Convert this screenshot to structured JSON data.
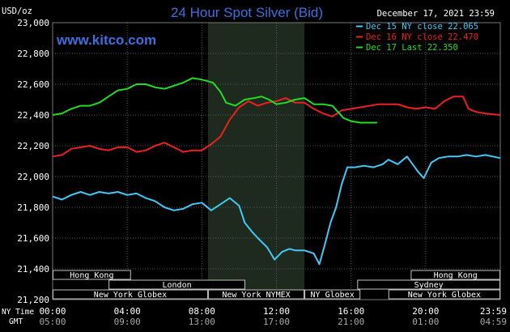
{
  "chart_data": {
    "type": "line",
    "title": "24 Hour Spot Silver (Bid)",
    "date_label": "December 17, 2021 23:59",
    "watermark": "www.kitco.com",
    "ylabel": "USD/oz",
    "ylim": [
      21200,
      23000
    ],
    "y_ticks": [
      21200,
      21400,
      21600,
      21800,
      22000,
      22200,
      22400,
      22600,
      22800,
      23000
    ],
    "y_tick_labels": [
      "21,200",
      "21,400",
      "21,600",
      "21,800",
      "22,000",
      "22,200",
      "22,400",
      "22,600",
      "22,800",
      "23,000"
    ],
    "xlim": [
      0,
      24
    ],
    "x_ticks": [
      0,
      4,
      8,
      12,
      16,
      20,
      24
    ],
    "x_tick_labels_ny": [
      "00:00",
      "04:00",
      "08:00",
      "12:00",
      "16:00",
      "20:00",
      "23:59"
    ],
    "x_tick_labels_gmt": [
      "05:00",
      "09:00",
      "13:00",
      "17:00",
      "21:00",
      "01:00",
      "04:59"
    ],
    "row_label_ny": "NY Time",
    "row_label_gmt": "GMT",
    "shaded_region": [
      8.33,
      13.5
    ],
    "grid": true,
    "legend_position": "top-right",
    "series": [
      {
        "name": "Dec 15 NY close 22.065",
        "color": "#44c8f5",
        "points": [
          [
            0,
            21870
          ],
          [
            0.5,
            21850
          ],
          [
            1,
            21880
          ],
          [
            1.5,
            21900
          ],
          [
            2,
            21880
          ],
          [
            2.5,
            21900
          ],
          [
            3,
            21890
          ],
          [
            3.5,
            21900
          ],
          [
            4,
            21880
          ],
          [
            4.5,
            21890
          ],
          [
            5,
            21860
          ],
          [
            5.5,
            21840
          ],
          [
            6,
            21800
          ],
          [
            6.5,
            21780
          ],
          [
            7,
            21790
          ],
          [
            7.5,
            21820
          ],
          [
            8,
            21830
          ],
          [
            8.5,
            21780
          ],
          [
            9,
            21820
          ],
          [
            9.5,
            21860
          ],
          [
            10,
            21810
          ],
          [
            10.3,
            21700
          ],
          [
            10.7,
            21640
          ],
          [
            11,
            21600
          ],
          [
            11.5,
            21540
          ],
          [
            11.9,
            21460
          ],
          [
            12.3,
            21510
          ],
          [
            12.7,
            21530
          ],
          [
            13,
            21520
          ],
          [
            13.5,
            21520
          ],
          [
            14,
            21500
          ],
          [
            14.3,
            21430
          ],
          [
            14.6,
            21560
          ],
          [
            14.9,
            21700
          ],
          [
            15.2,
            21800
          ],
          [
            15.5,
            21950
          ],
          [
            15.8,
            22060
          ],
          [
            16.2,
            22060
          ],
          [
            16.7,
            22070
          ],
          [
            17.2,
            22060
          ],
          [
            17.7,
            22080
          ],
          [
            18,
            22110
          ],
          [
            18.5,
            22080
          ],
          [
            19,
            22130
          ],
          [
            19.3,
            22080
          ],
          [
            19.6,
            22030
          ],
          [
            19.9,
            21990
          ],
          [
            20.3,
            22090
          ],
          [
            20.7,
            22120
          ],
          [
            21.2,
            22130
          ],
          [
            21.7,
            22130
          ],
          [
            22.2,
            22140
          ],
          [
            22.7,
            22130
          ],
          [
            23.2,
            22140
          ],
          [
            23.99,
            22120
          ]
        ]
      },
      {
        "name": "Dec 16 NY close 22.470",
        "color": "#ee2020",
        "points": [
          [
            0,
            22130
          ],
          [
            0.5,
            22140
          ],
          [
            1,
            22180
          ],
          [
            1.5,
            22190
          ],
          [
            2,
            22200
          ],
          [
            2.5,
            22180
          ],
          [
            3,
            22170
          ],
          [
            3.5,
            22190
          ],
          [
            4,
            22190
          ],
          [
            4.5,
            22160
          ],
          [
            5,
            22170
          ],
          [
            5.5,
            22200
          ],
          [
            6,
            22220
          ],
          [
            6.5,
            22190
          ],
          [
            7,
            22160
          ],
          [
            7.5,
            22170
          ],
          [
            8,
            22170
          ],
          [
            8.5,
            22210
          ],
          [
            9,
            22260
          ],
          [
            9.5,
            22370
          ],
          [
            10,
            22450
          ],
          [
            10.5,
            22490
          ],
          [
            11,
            22460
          ],
          [
            11.5,
            22480
          ],
          [
            12,
            22490
          ],
          [
            12.5,
            22510
          ],
          [
            13,
            22480
          ],
          [
            13.5,
            22480
          ],
          [
            14,
            22440
          ],
          [
            14.5,
            22410
          ],
          [
            15,
            22390
          ],
          [
            15.5,
            22430
          ],
          [
            16,
            22440
          ],
          [
            16.5,
            22450
          ],
          [
            17,
            22460
          ],
          [
            17.5,
            22470
          ],
          [
            18,
            22470
          ],
          [
            18.5,
            22470
          ],
          [
            19,
            22450
          ],
          [
            19.5,
            22440
          ],
          [
            20,
            22450
          ],
          [
            20.5,
            22440
          ],
          [
            21,
            22490
          ],
          [
            21.5,
            22520
          ],
          [
            22,
            22520
          ],
          [
            22.3,
            22440
          ],
          [
            22.7,
            22420
          ],
          [
            23.2,
            22410
          ],
          [
            23.99,
            22400
          ]
        ]
      },
      {
        "name": "Dec 17 Last 22.350",
        "color": "#22dd22",
        "points": [
          [
            0,
            22400
          ],
          [
            0.5,
            22410
          ],
          [
            1,
            22440
          ],
          [
            1.5,
            22460
          ],
          [
            2,
            22460
          ],
          [
            2.5,
            22480
          ],
          [
            3,
            22520
          ],
          [
            3.5,
            22560
          ],
          [
            4,
            22570
          ],
          [
            4.5,
            22600
          ],
          [
            5,
            22600
          ],
          [
            5.5,
            22580
          ],
          [
            6,
            22570
          ],
          [
            6.5,
            22590
          ],
          [
            7,
            22610
          ],
          [
            7.5,
            22640
          ],
          [
            8,
            22630
          ],
          [
            8.3,
            22620
          ],
          [
            8.6,
            22610
          ],
          [
            9,
            22550
          ],
          [
            9.3,
            22480
          ],
          [
            9.8,
            22460
          ],
          [
            10.3,
            22500
          ],
          [
            10.8,
            22510
          ],
          [
            11.2,
            22520
          ],
          [
            11.6,
            22500
          ],
          [
            12,
            22470
          ],
          [
            12.5,
            22480
          ],
          [
            13,
            22500
          ],
          [
            13.5,
            22510
          ],
          [
            14,
            22470
          ],
          [
            14.5,
            22470
          ],
          [
            15,
            22460
          ],
          [
            15.3,
            22420
          ],
          [
            15.6,
            22380
          ],
          [
            16,
            22360
          ],
          [
            16.5,
            22350
          ],
          [
            17,
            22350
          ],
          [
            17.4,
            22350
          ]
        ]
      }
    ]
  },
  "sessions": [
    {
      "label": "Hong Kong",
      "row": 0,
      "start": 0,
      "end": 4.2
    },
    {
      "label": "Hong Kong",
      "row": 0,
      "start": 19.2,
      "end": 24
    },
    {
      "label": "London",
      "row": 1,
      "start": 3,
      "end": 10.33
    },
    {
      "label": "Sydney",
      "row": 1,
      "start": 16.33,
      "end": 24
    },
    {
      "label": "New York Globex",
      "row": 2,
      "start": 0,
      "end": 8.33
    },
    {
      "label": "New York NYMEX",
      "row": 2,
      "start": 8.33,
      "end": 13.5
    },
    {
      "label": "NY Globex",
      "row": 2,
      "start": 13.5,
      "end": 16.5
    },
    {
      "label": "New York Globex",
      "row": 2,
      "start": 18,
      "end": 24
    }
  ],
  "colors": {
    "background": "#000000",
    "grid": "#5a5a5a",
    "title": "#3d6fdf",
    "watermark": "#3d6fdf",
    "axis_text": "#ffffff",
    "shade": "#1d2a1d",
    "session_text": "#ffffff",
    "session_border": "#c0c0c0"
  }
}
